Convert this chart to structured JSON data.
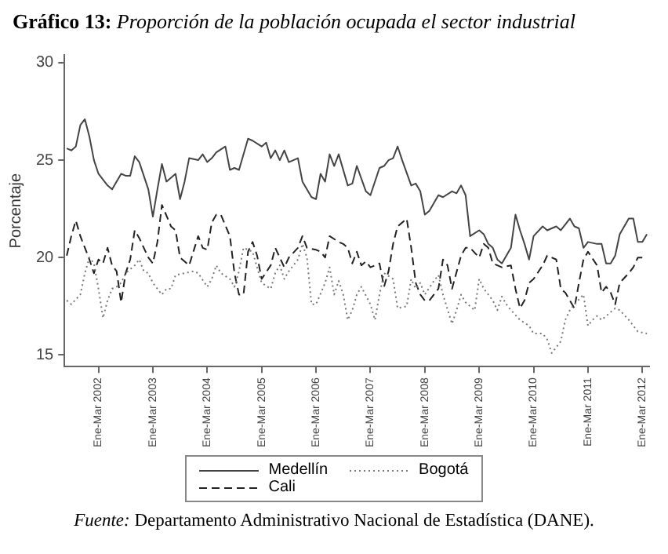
{
  "chart_data": {
    "type": "line",
    "title": "Gráfico 13: Proporción de la población ocupada el sector industrial",
    "ylabel": "Porcentaje",
    "annotations": [
      "Fuente: Departamento Administrativo Nacional de Estadística (DANE)."
    ],
    "categories": [
      null,
      null,
      null,
      null,
      null,
      null,
      null,
      "Ene-Mar 2002",
      null,
      null,
      null,
      null,
      null,
      null,
      null,
      null,
      null,
      null,
      null,
      "Ene-Mar 2003",
      null,
      null,
      null,
      null,
      null,
      null,
      null,
      null,
      null,
      null,
      null,
      "Ene-Mar 2004",
      null,
      null,
      null,
      null,
      null,
      null,
      null,
      null,
      null,
      null,
      null,
      "Ene-Mar 2005",
      null,
      null,
      null,
      null,
      null,
      null,
      null,
      null,
      null,
      null,
      null,
      "Ene-Mar 2006",
      null,
      null,
      null,
      null,
      null,
      null,
      null,
      null,
      null,
      null,
      null,
      "Ene-Mar 2007",
      null,
      null,
      null,
      null,
      null,
      null,
      null,
      null,
      null,
      null,
      null,
      "Ene-Mar 2008",
      null,
      null,
      null,
      null,
      null,
      null,
      null,
      null,
      null,
      null,
      null,
      "Ene-Mar 2009",
      null,
      null,
      null,
      null,
      null,
      null,
      null,
      null,
      null,
      null,
      null,
      "Ene-Mar 2010",
      null,
      null,
      null,
      null,
      null,
      null,
      null,
      null,
      null,
      null,
      null,
      "Ene-Mar 2011",
      null,
      null,
      null,
      null,
      null,
      null,
      null,
      null,
      null,
      null,
      null,
      "Ene-Mar 2012",
      null
    ],
    "ylim": [
      14.4,
      30.4
    ],
    "yticks": [
      15,
      20,
      25,
      30
    ],
    "grid": false,
    "legend": "bottom",
    "marker": "none",
    "series": [
      {
        "name": "Medellín",
        "color": "#444444",
        "line_style": "solid",
        "values": [
          25.6,
          25.5,
          25.7,
          26.8,
          27.1,
          26.2,
          25.0,
          24.3,
          null,
          23.7,
          23.5,
          null,
          24.3,
          24.2,
          24.2,
          25.2,
          24.9,
          null,
          23.5,
          22.1,
          23.5,
          24.8,
          23.9,
          null,
          24.3,
          23.0,
          23.9,
          25.1,
          null,
          25.0,
          25.3,
          24.9,
          25.1,
          25.4,
          null,
          25.7,
          24.5,
          24.6,
          24.5,
          null,
          26.1,
          26.0,
          null,
          25.7,
          25.9,
          25.1,
          25.5,
          25.0,
          25.5,
          24.9,
          null,
          25.1,
          23.9,
          null,
          23.1,
          23.0,
          24.3,
          23.9,
          25.3,
          24.7,
          25.3,
          null,
          23.7,
          23.8,
          24.7,
          null,
          23.4,
          23.2,
          null,
          24.6,
          24.7,
          25.0,
          25.1,
          25.7,
          25.0,
          null,
          23.7,
          23.8,
          23.4,
          22.2,
          22.4,
          null,
          23.2,
          23.1,
          null,
          23.4,
          23.3,
          23.7,
          23.2,
          21.1,
          null,
          21.4,
          21.2,
          20.7,
          20.5,
          19.9,
          19.7,
          null,
          20.5,
          22.2,
          21.4,
          20.7,
          19.9,
          21.1,
          null,
          21.6,
          21.4,
          21.5,
          21.6,
          21.4,
          null,
          22.0,
          21.6,
          21.5,
          20.5,
          20.8,
          null,
          20.7,
          20.7,
          19.7,
          19.7,
          20.1,
          21.2,
          null,
          22.0,
          22.0,
          20.8,
          20.8,
          21.2
        ]
      },
      {
        "name": "Bogotá",
        "color": "#777777",
        "line_style": "dotted",
        "values": [
          17.8,
          17.6,
          null,
          18.1,
          19.2,
          20.0,
          19.7,
          18.4,
          16.9,
          17.8,
          18.4,
          18.5,
          18.7,
          19.2,
          null,
          19.6,
          19.9,
          19.3,
          19.2,
          18.7,
          null,
          18.1,
          18.4,
          18.4,
          19.1,
          null,
          19.2,
          null,
          19.3,
          19.2,
          null,
          18.5,
          18.9,
          19.6,
          19.2,
          null,
          18.9,
          18.5,
          19.3,
          20.5,
          null,
          20.3,
          19.5,
          18.7,
          null,
          18.4,
          19.2,
          19.6,
          18.9,
          19.3,
          null,
          19.9,
          20.7,
          20.0,
          17.6,
          17.6,
          null,
          18.7,
          19.5,
          18.1,
          18.8,
          18.1,
          16.8,
          17.3,
          18.1,
          18.5,
          null,
          17.6,
          16.8,
          18.1,
          19.2,
          null,
          18.9,
          17.4,
          null,
          17.5,
          18.9,
          18.4,
          18.7,
          18.1,
          null,
          18.8,
          19.1,
          18.1,
          null,
          16.6,
          17.3,
          18.1,
          17.7,
          null,
          17.3,
          18.9,
          18.4,
          null,
          17.8,
          17.3,
          18.0,
          17.6,
          17.3,
          null,
          16.8,
          null,
          16.5,
          16.1,
          null,
          16.1,
          15.8,
          15.1,
          null,
          15.7,
          16.8,
          17.3,
          17.6,
          null,
          18.1,
          16.5,
          16.8,
          17.0,
          16.8,
          null,
          17.2,
          17.4,
          17.3,
          null,
          16.8,
          16.5,
          16.2,
          null,
          16.1
        ]
      },
      {
        "name": "Cali",
        "color": "#222222",
        "line_style": "dashed",
        "values": [
          20.1,
          21.1,
          21.9,
          21.1,
          null,
          19.9,
          19.2,
          19.9,
          19.7,
          20.5,
          19.6,
          19.3,
          17.7,
          19.2,
          19.9,
          21.4,
          21.0,
          null,
          20.0,
          19.7,
          20.8,
          22.7,
          null,
          21.6,
          21.4,
          20.0,
          null,
          19.6,
          null,
          21.1,
          20.5,
          20.4,
          21.8,
          22.2,
          22.2,
          null,
          21.1,
          19.2,
          18.1,
          18.1,
          20.3,
          20.8,
          20.1,
          18.9,
          null,
          19.6,
          20.5,
          20.0,
          19.5,
          20.0,
          null,
          20.5,
          21.1,
          20.5,
          null,
          20.4,
          20.3,
          20.0,
          21.1,
          null,
          20.8,
          20.7,
          20.5,
          19.7,
          20.3,
          19.6,
          19.8,
          19.5,
          null,
          19.7,
          18.5,
          19.3,
          20.7,
          21.6,
          null,
          22.0,
          20.5,
          18.7,
          18.1,
          17.8,
          17.8,
          null,
          18.4,
          19.9,
          19.6,
          18.4,
          null,
          20.1,
          20.5,
          20.5,
          null,
          20.0,
          20.7,
          20.5,
          19.7,
          19.6,
          19.5,
          null,
          19.6,
          18.4,
          17.4,
          17.8,
          18.7,
          18.9,
          null,
          19.6,
          20.1,
          null,
          19.9,
          18.4,
          18.2,
          null,
          17.4,
          18.7,
          19.9,
          20.3,
          null,
          19.6,
          18.2,
          18.5,
          18.2,
          17.6,
          18.7,
          null,
          19.2,
          19.5,
          20.0,
          20.0,
          null
        ]
      }
    ]
  }
}
